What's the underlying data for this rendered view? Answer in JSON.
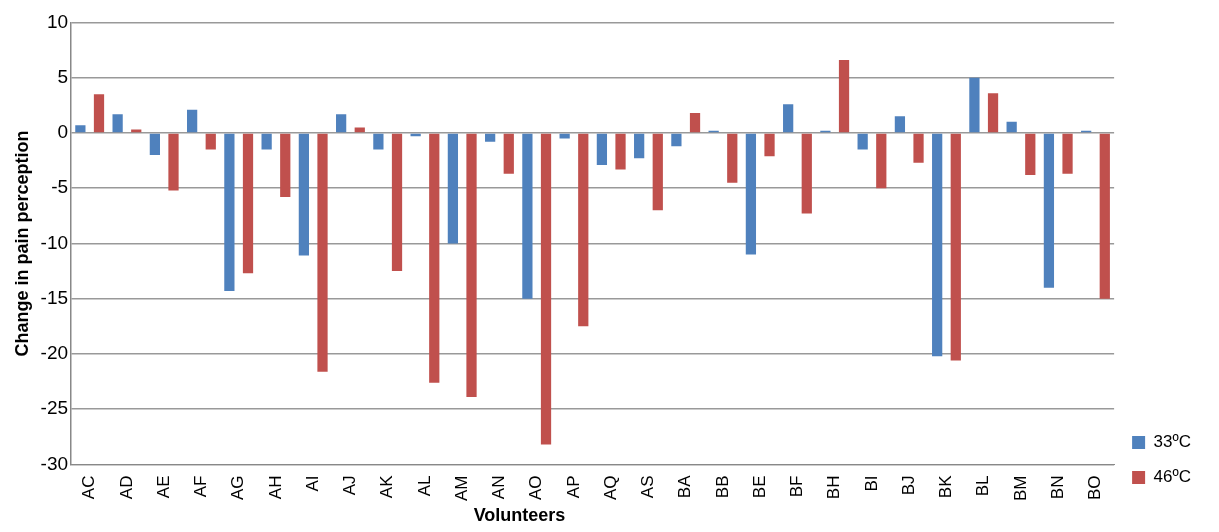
{
  "chart_data": {
    "type": "bar",
    "xlabel": "Volunteers",
    "ylabel": "Change in pain perception",
    "categories": [
      "AC",
      "AD",
      "AE",
      "AF",
      "AG",
      "AH",
      "AI",
      "AJ",
      "AK",
      "AL",
      "AM",
      "AN",
      "AO",
      "AP",
      "AQ",
      "AS",
      "BA",
      "BB",
      "BE",
      "BF",
      "BH",
      "BI",
      "BJ",
      "BK",
      "BL",
      "BM",
      "BN",
      "BO"
    ],
    "series": [
      {
        "name": "33ºC",
        "color": "#4f81bd",
        "values": [
          0.7,
          1.7,
          -2,
          2.1,
          -14.3,
          -1.5,
          -11.1,
          1.7,
          -1.5,
          -0.3,
          -10,
          -0.8,
          -15,
          -0.5,
          -2.9,
          -2.3,
          -1.2,
          0.2,
          -11,
          2.6,
          0.2,
          -1.5,
          1.5,
          -20.2,
          5,
          1,
          -14,
          0.2
        ]
      },
      {
        "name": "46ºC",
        "color": "#c0504d",
        "values": [
          3.5,
          0.3,
          -5.2,
          -1.5,
          -12.7,
          -5.8,
          -21.6,
          0.5,
          -12.5,
          -22.6,
          -23.9,
          -3.7,
          -28.2,
          -17.5,
          -3.3,
          -7,
          1.8,
          -4.5,
          -2.1,
          -7.3,
          6.6,
          -5,
          -2.7,
          -20.6,
          3.6,
          -3.8,
          -3.7,
          -15
        ]
      }
    ],
    "ylim": [
      -30,
      10
    ],
    "yticks": [
      -30,
      -25,
      -20,
      -15,
      -10,
      -5,
      0,
      5,
      10
    ],
    "grid": "y",
    "legend": "bottom right"
  }
}
